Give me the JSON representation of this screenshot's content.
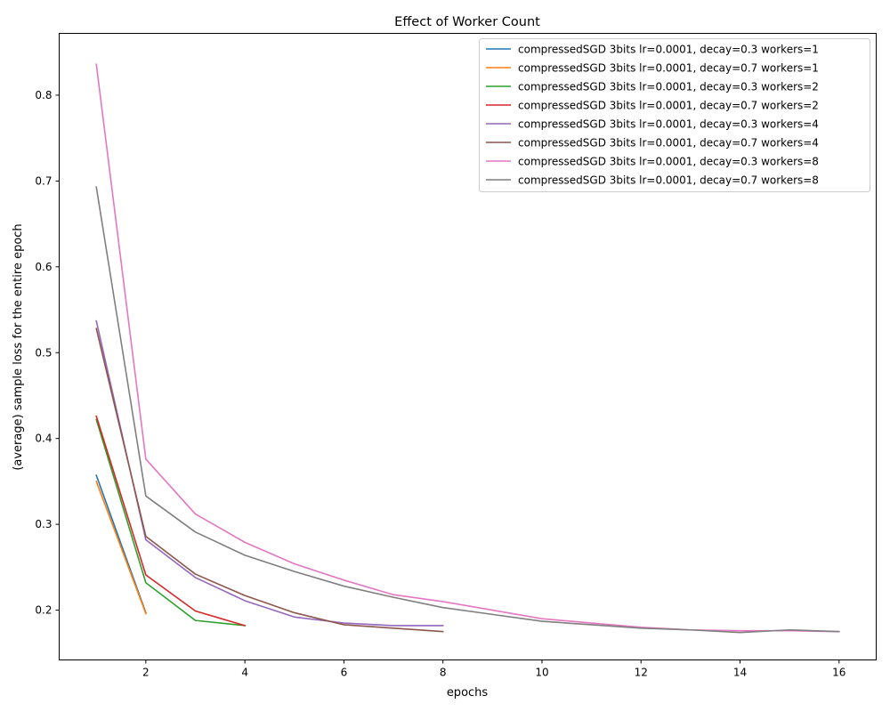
{
  "chart_data": {
    "type": "line",
    "title": "Effect of Worker Count",
    "xlabel": "epochs",
    "ylabel": "(average) sample loss for the entire epoch",
    "xlim": [
      0.25,
      16.75
    ],
    "ylim": [
      0.142,
      0.872
    ],
    "xticks": [
      2,
      4,
      6,
      8,
      10,
      12,
      14,
      16
    ],
    "yticks": [
      0.2,
      0.3,
      0.4,
      0.5,
      0.6,
      0.7,
      0.8
    ],
    "grid": false,
    "legend_position": "top-right",
    "series": [
      {
        "name": "compressedSGD 3bits lr=0.0001, decay=0.3 workers=1",
        "color": "#1f77b4",
        "x": [
          1,
          2
        ],
        "y": [
          0.357,
          0.197
        ]
      },
      {
        "name": "compressedSGD 3bits lr=0.0001, decay=0.7 workers=1",
        "color": "#ff7f0e",
        "x": [
          1,
          2
        ],
        "y": [
          0.35,
          0.196
        ]
      },
      {
        "name": "compressedSGD 3bits lr=0.0001, decay=0.3 workers=2",
        "color": "#2ca02c",
        "x": [
          1,
          2,
          3,
          4
        ],
        "y": [
          0.422,
          0.232,
          0.188,
          0.182
        ]
      },
      {
        "name": "compressedSGD 3bits lr=0.0001, decay=0.7 workers=2",
        "color": "#d62728",
        "x": [
          1,
          2,
          3,
          4
        ],
        "y": [
          0.426,
          0.241,
          0.199,
          0.182
        ]
      },
      {
        "name": "compressedSGD 3bits lr=0.0001, decay=0.3 workers=4",
        "color": "#9467bd",
        "x": [
          1,
          2,
          3,
          4,
          5,
          6,
          7,
          8
        ],
        "y": [
          0.537,
          0.282,
          0.238,
          0.211,
          0.192,
          0.185,
          0.182,
          0.182
        ]
      },
      {
        "name": "compressedSGD 3bits lr=0.0001, decay=0.7 workers=4",
        "color": "#8c564b",
        "x": [
          1,
          2,
          3,
          4,
          5,
          6,
          7,
          8
        ],
        "y": [
          0.528,
          0.286,
          0.242,
          0.217,
          0.197,
          0.183,
          0.179,
          0.175
        ]
      },
      {
        "name": "compressedSGD 3bits lr=0.0001, decay=0.3 workers=8",
        "color": "#e377c2",
        "x": [
          1,
          2,
          3,
          4,
          5,
          6,
          7,
          8,
          9,
          10,
          11,
          12,
          13,
          14,
          15,
          16
        ],
        "y": [
          0.836,
          0.376,
          0.312,
          0.279,
          0.254,
          0.235,
          0.218,
          0.21,
          0.2,
          0.19,
          0.185,
          0.18,
          0.177,
          0.176,
          0.176,
          0.175
        ]
      },
      {
        "name": "compressedSGD 3bits lr=0.0001, decay=0.7 workers=8",
        "color": "#7f7f7f",
        "x": [
          1,
          2,
          3,
          4,
          5,
          6,
          7,
          8,
          9,
          10,
          11,
          12,
          13,
          14,
          15,
          16
        ],
        "y": [
          0.693,
          0.333,
          0.291,
          0.264,
          0.245,
          0.228,
          0.215,
          0.203,
          0.195,
          0.187,
          0.183,
          0.179,
          0.177,
          0.174,
          0.177,
          0.175
        ]
      }
    ]
  }
}
